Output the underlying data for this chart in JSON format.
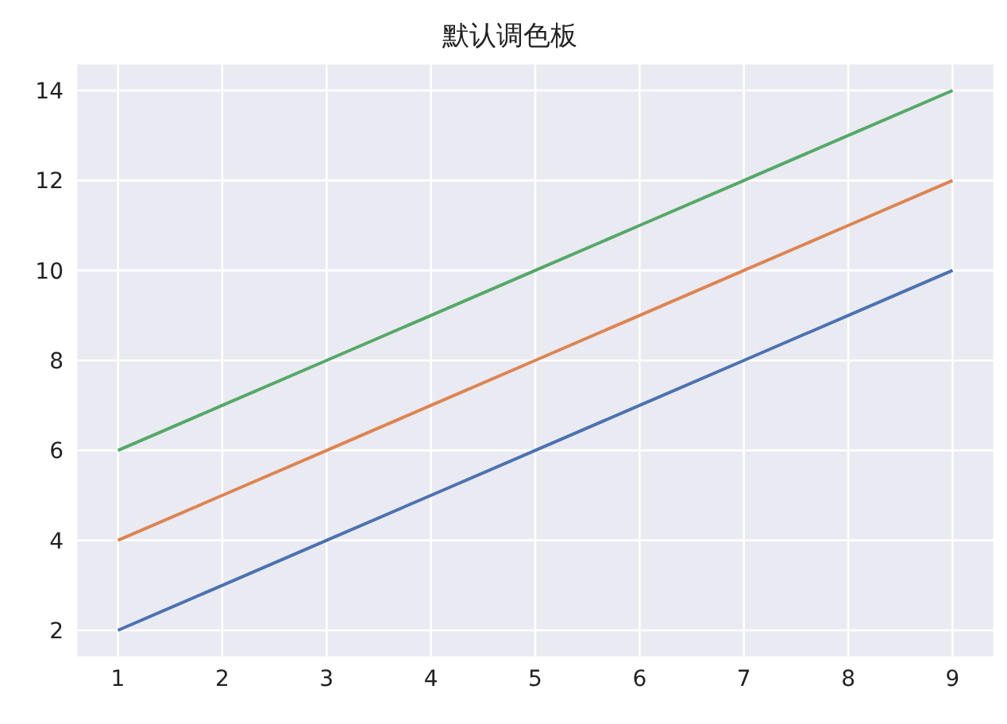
{
  "chart_data": {
    "type": "line",
    "title": "默认调色板",
    "x": [
      1,
      2,
      3,
      4,
      5,
      6,
      7,
      8,
      9
    ],
    "series": [
      {
        "color": "#4c72b0",
        "values": [
          2,
          3,
          4,
          5,
          6,
          7,
          8,
          9,
          10
        ]
      },
      {
        "color": "#dd8452",
        "values": [
          4,
          5,
          6,
          7,
          8,
          9,
          10,
          11,
          12
        ]
      },
      {
        "color": "#55a868",
        "values": [
          6,
          7,
          8,
          9,
          10,
          11,
          12,
          13,
          14
        ]
      }
    ],
    "xlim": [
      0.6,
      9.4
    ],
    "ylim": [
      1.4,
      14.6
    ],
    "xticks": [
      1,
      2,
      3,
      4,
      5,
      6,
      7,
      8,
      9
    ],
    "yticks": [
      2,
      4,
      6,
      8,
      10,
      12,
      14
    ],
    "grid": true
  }
}
